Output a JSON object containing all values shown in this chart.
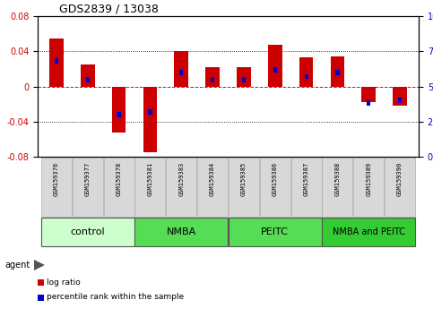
{
  "title": "GDS2839 / 13038",
  "samples": [
    "GSM159376",
    "GSM159377",
    "GSM159378",
    "GSM159381",
    "GSM159383",
    "GSM159384",
    "GSM159385",
    "GSM159386",
    "GSM159387",
    "GSM159388",
    "GSM159389",
    "GSM159390"
  ],
  "log_ratio": [
    0.055,
    0.025,
    -0.052,
    -0.075,
    0.04,
    0.022,
    0.022,
    0.047,
    0.033,
    0.034,
    -0.018,
    -0.022
  ],
  "percentile_rank_raw": [
    68,
    55,
    30,
    32,
    60,
    55,
    55,
    62,
    57,
    60,
    38,
    40
  ],
  "ylim": [
    -0.08,
    0.08
  ],
  "yticks_left": [
    -0.08,
    -0.04,
    0,
    0.04,
    0.08
  ],
  "yticks_right": [
    0,
    25,
    50,
    75,
    100
  ],
  "log_color": "#cc0000",
  "pct_color": "#0000cc",
  "zero_line_color": "#ff0000",
  "group_data": [
    {
      "label": "control",
      "indices": [
        0,
        1,
        2
      ],
      "color": "#ccffcc",
      "font_size": 8
    },
    {
      "label": "NMBA",
      "indices": [
        3,
        4,
        5
      ],
      "color": "#55dd55",
      "font_size": 8
    },
    {
      "label": "PEITC",
      "indices": [
        6,
        7,
        8
      ],
      "color": "#55dd55",
      "font_size": 8
    },
    {
      "label": "NMBA and PEITC",
      "indices": [
        9,
        10,
        11
      ],
      "color": "#33cc33",
      "font_size": 7
    }
  ],
  "legend_items": [
    {
      "label": "log ratio",
      "color": "#cc0000"
    },
    {
      "label": "percentile rank within the sample",
      "color": "#0000cc"
    }
  ]
}
